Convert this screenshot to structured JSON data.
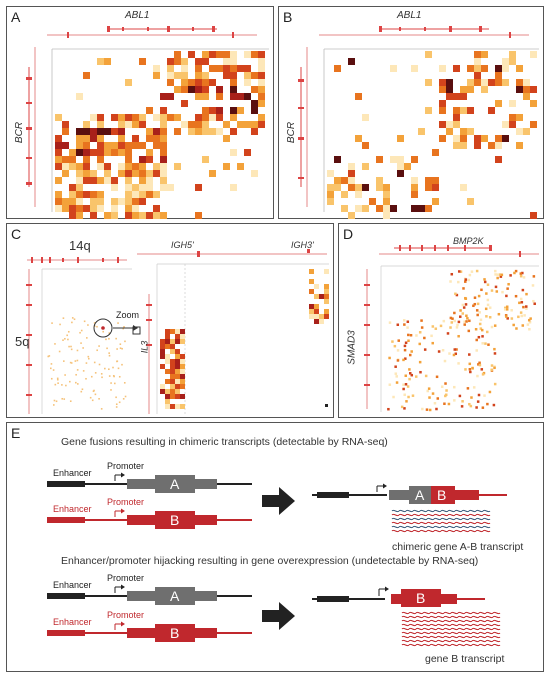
{
  "panels": {
    "a": {
      "label": "A",
      "top_gene": "ABL1",
      "side_gene": "BCR"
    },
    "b": {
      "label": "B",
      "top_gene": "ABL1",
      "side_gene": "BCR"
    },
    "c": {
      "label": "C",
      "locus_top": "14q",
      "locus_side": "5q",
      "gene1": "IGH5'",
      "gene2": "IGH3'",
      "zoom": "Zoom",
      "il3": "IL3"
    },
    "d": {
      "label": "D",
      "top_gene": "BMP2K",
      "side_gene": "SMAD3"
    },
    "e": {
      "label": "E",
      "fusion_title": "Gene fusions resulting in chimeric transcripts (detectable by RNA-seq)",
      "hijack_title": "Enhancer/promoter hijacking resulting in gene overexpression (undetectable by RNA-seq)",
      "enhancer": "Enhancer",
      "promoter": "Promoter",
      "gene_a": "A",
      "gene_b": "B",
      "chimeric_caption": "chimeric gene A-B transcript",
      "geneb_caption": "gene B transcript"
    }
  },
  "colors": {
    "red": "#c0282d",
    "grey": "#6f6f6f",
    "dark": "#222222",
    "blue": "#3a5a7a"
  }
}
